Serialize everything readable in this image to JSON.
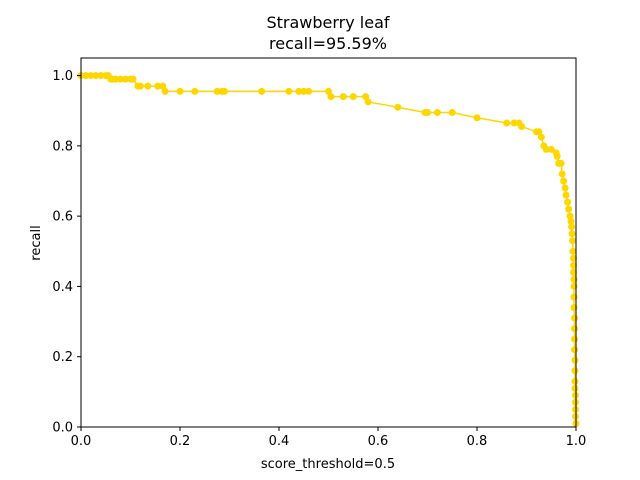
{
  "chart_data": {
    "type": "line",
    "title": "Strawberry leaf",
    "subtitle": "recall=95.59%",
    "xlabel": "score_threshold=0.5",
    "ylabel": "recall",
    "xlim": [
      0.0,
      1.0
    ],
    "ylim": [
      0.0,
      1.05
    ],
    "xticks": [
      "0.0",
      "0.2",
      "0.4",
      "0.6",
      "0.8",
      "1.0"
    ],
    "yticks": [
      "0.0",
      "0.2",
      "0.4",
      "0.6",
      "0.8",
      "1.0"
    ],
    "grid": false,
    "legend": "none",
    "series": [
      {
        "color": "#FFD700",
        "marker": "circle",
        "x": [
          0.0,
          0.01,
          0.02,
          0.03,
          0.04,
          0.05,
          0.055,
          0.06,
          0.065,
          0.07,
          0.08,
          0.09,
          0.1,
          0.105,
          0.115,
          0.12,
          0.135,
          0.155,
          0.165,
          0.17,
          0.2,
          0.23,
          0.275,
          0.285,
          0.29,
          0.365,
          0.42,
          0.44,
          0.45,
          0.46,
          0.5,
          0.505,
          0.53,
          0.55,
          0.575,
          0.58,
          0.64,
          0.695,
          0.7,
          0.72,
          0.75,
          0.8,
          0.86,
          0.875,
          0.885,
          0.89,
          0.92,
          0.925,
          0.93,
          0.935,
          0.94,
          0.95,
          0.96,
          0.962,
          0.965,
          0.97,
          0.972,
          0.975,
          0.978,
          0.98,
          0.983,
          0.985,
          0.988,
          0.99,
          0.991,
          0.992,
          0.993,
          0.994,
          0.995,
          0.995,
          0.995,
          0.996,
          0.996,
          0.996,
          0.996,
          0.997,
          0.997,
          0.997,
          0.997,
          0.998,
          0.998,
          0.998,
          0.998,
          0.999,
          0.999,
          0.999,
          0.999,
          1.0
        ],
        "y": [
          1.0,
          1.0,
          1.0,
          1.0,
          1.0,
          1.0,
          1.0,
          0.99,
          0.99,
          0.99,
          0.99,
          0.99,
          0.99,
          0.99,
          0.97,
          0.97,
          0.97,
          0.97,
          0.97,
          0.955,
          0.955,
          0.955,
          0.955,
          0.955,
          0.955,
          0.955,
          0.955,
          0.955,
          0.955,
          0.955,
          0.955,
          0.94,
          0.94,
          0.94,
          0.94,
          0.925,
          0.91,
          0.895,
          0.895,
          0.895,
          0.895,
          0.88,
          0.865,
          0.865,
          0.865,
          0.855,
          0.84,
          0.84,
          0.825,
          0.8,
          0.79,
          0.79,
          0.78,
          0.77,
          0.75,
          0.75,
          0.72,
          0.7,
          0.68,
          0.66,
          0.64,
          0.62,
          0.6,
          0.585,
          0.57,
          0.55,
          0.53,
          0.5,
          0.48,
          0.46,
          0.44,
          0.42,
          0.4,
          0.37,
          0.34,
          0.31,
          0.28,
          0.25,
          0.22,
          0.19,
          0.16,
          0.13,
          0.11,
          0.09,
          0.07,
          0.05,
          0.03,
          0.01
        ]
      }
    ]
  }
}
